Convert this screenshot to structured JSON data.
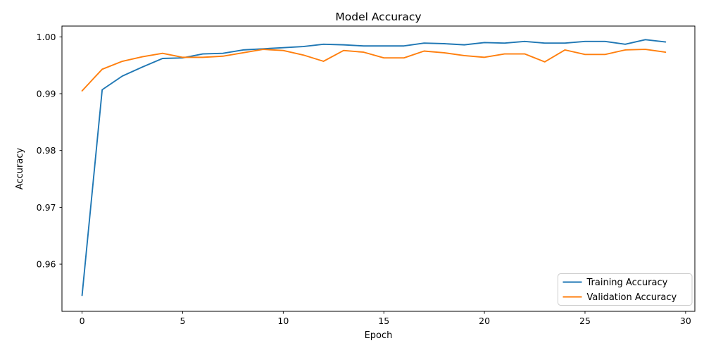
{
  "figure": {
    "kind": "matplotlib-line-figure"
  },
  "chart_data": {
    "type": "line",
    "title": "Model Accuracy",
    "xlabel": "Epoch",
    "ylabel": "Accuracy",
    "x": [
      0,
      1,
      2,
      3,
      4,
      5,
      6,
      7,
      8,
      9,
      10,
      11,
      12,
      13,
      14,
      15,
      16,
      17,
      18,
      19,
      20,
      21,
      22,
      23,
      24,
      25,
      26,
      27,
      28,
      29
    ],
    "series": [
      {
        "name": "Training Accuracy",
        "color": "#1f77b4",
        "values": [
          0.9545,
          0.9907,
          0.9931,
          0.9947,
          0.9962,
          0.9963,
          0.997,
          0.9971,
          0.9977,
          0.9979,
          0.9981,
          0.9983,
          0.9987,
          0.9986,
          0.9984,
          0.9984,
          0.9984,
          0.9989,
          0.9988,
          0.9986,
          0.999,
          0.9989,
          0.9992,
          0.9989,
          0.9989,
          0.9992,
          0.9992,
          0.9987,
          0.9995,
          0.9991
        ]
      },
      {
        "name": "Validation Accuracy",
        "color": "#ff7f0e",
        "values": [
          0.9905,
          0.9943,
          0.9957,
          0.9965,
          0.9971,
          0.9964,
          0.9964,
          0.9966,
          0.9972,
          0.9978,
          0.9976,
          0.9968,
          0.9957,
          0.9976,
          0.9973,
          0.9963,
          0.9963,
          0.9975,
          0.9972,
          0.9967,
          0.9964,
          0.997,
          0.997,
          0.9956,
          0.9977,
          0.9969,
          0.9969,
          0.9977,
          0.9978,
          0.9973
        ]
      }
    ],
    "xlim": [
      -1.0,
      30.46
    ],
    "ylim": [
      0.9517,
      1.0019
    ],
    "xticks": [
      0,
      5,
      10,
      15,
      20,
      25,
      30
    ],
    "xtick_labels": [
      "0",
      "5",
      "10",
      "15",
      "20",
      "25",
      "30"
    ],
    "yticks": [
      1.0,
      0.99,
      0.98,
      0.97,
      0.96
    ],
    "ytick_labels": [
      "1.00",
      "0.99",
      "0.98",
      "0.97",
      "0.96"
    ],
    "grid": false,
    "legend_position": "lower right",
    "colors": {
      "axis": "#000000",
      "legend_border": "#cccccc",
      "background": "#ffffff"
    }
  }
}
